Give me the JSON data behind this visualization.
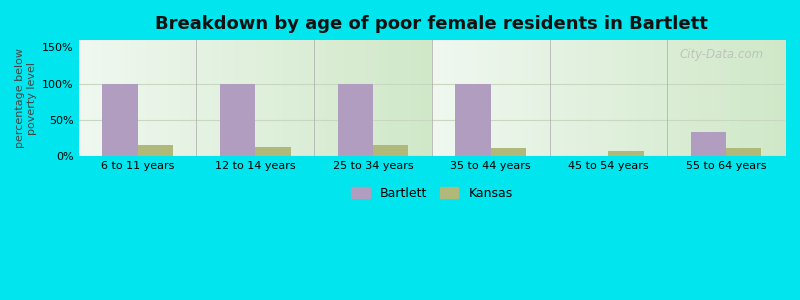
{
  "title": "Breakdown by age of poor female residents in Bartlett",
  "categories": [
    "6 to 11 years",
    "12 to 14 years",
    "25 to 34 years",
    "35 to 44 years",
    "45 to 54 years",
    "55 to 64 years"
  ],
  "bartlett_values": [
    100,
    100,
    100,
    100,
    0,
    33
  ],
  "kansas_values": [
    15,
    13,
    15,
    11,
    7,
    11
  ],
  "bartlett_color": "#b09dc0",
  "kansas_color": "#b0b87a",
  "ylabel": "percentage below\npoverty level",
  "ylim": [
    0,
    160
  ],
  "yticks": [
    0,
    50,
    100,
    150
  ],
  "ytick_labels": [
    "0%",
    "50%",
    "100%",
    "150%"
  ],
  "bg_top": "#f0f8f0",
  "bg_bottom": "#d0e8c8",
  "outer_background": "#00e5ee",
  "bar_width": 0.3,
  "title_fontsize": 13,
  "axis_fontsize": 8,
  "legend_fontsize": 9,
  "watermark": "City-Data.com",
  "grid_color": "#c8d8c0",
  "grid_linewidth": 0.8
}
